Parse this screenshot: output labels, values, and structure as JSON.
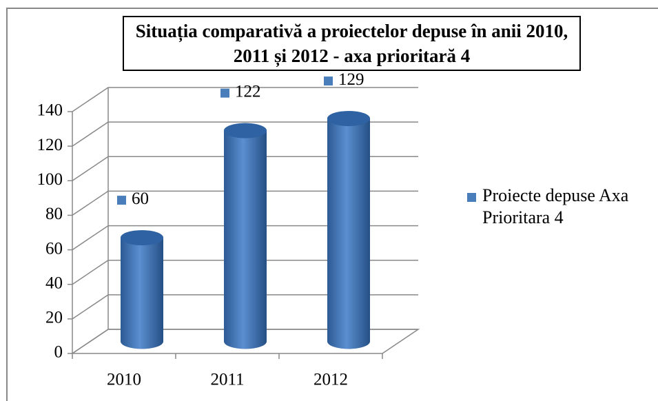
{
  "chart_data": {
    "type": "bar3d",
    "title": "Situația comparativă a proiectelor depuse în anii 2010, 2011 și 2012 - axa prioritară 4",
    "categories": [
      "2010",
      "2011",
      "2012"
    ],
    "series": [
      {
        "name": "Proiecte depuse Axa Prioritara 4",
        "color": "#4a7ebb",
        "values": [
          60,
          122,
          129
        ]
      }
    ],
    "ylim": [
      0,
      140
    ],
    "yticks": [
      0,
      20,
      40,
      60,
      80,
      100,
      120,
      140
    ],
    "grid": true,
    "legend": "right"
  }
}
